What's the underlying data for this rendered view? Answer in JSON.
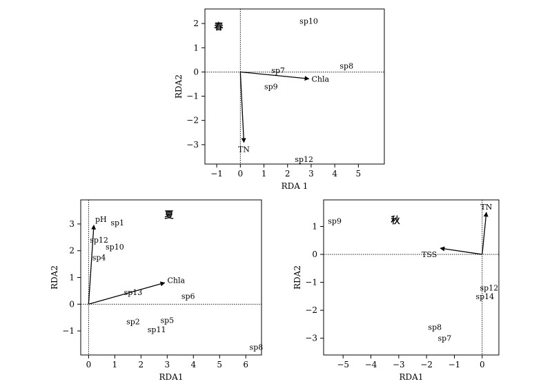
{
  "chart_data": [
    {
      "type": "scatter",
      "title": "春",
      "xlabel": "RDA 1",
      "ylabel": "RDA2",
      "xlim": [
        -1.5,
        6.1
      ],
      "ylim": [
        -3.8,
        2.6
      ],
      "xticks": [
        -1,
        0,
        1,
        2,
        3,
        4,
        5
      ],
      "yticks": [
        -3,
        -2,
        -1,
        0,
        1,
        2
      ],
      "grid": false,
      "reference_lines": {
        "x": 0,
        "y": 0,
        "style": "dotted"
      },
      "species": [
        {
          "label": "sp10",
          "x": 2.9,
          "y": 2.1
        },
        {
          "label": "sp7",
          "x": 1.6,
          "y": 0.07
        },
        {
          "label": "sp8",
          "x": 4.5,
          "y": 0.25
        },
        {
          "label": "sp9",
          "x": 1.3,
          "y": -0.6
        },
        {
          "label": "sp12",
          "x": 2.7,
          "y": -3.6
        }
      ],
      "vectors": [
        {
          "label": "Chla",
          "x": 2.9,
          "y": -0.28
        },
        {
          "label": "TN",
          "x": 0.15,
          "y": -2.9
        }
      ]
    },
    {
      "type": "scatter",
      "title": "夏",
      "xlabel": "RDA1",
      "ylabel": "RDA2",
      "xlim": [
        -0.3,
        6.6
      ],
      "ylim": [
        -1.9,
        3.9
      ],
      "xticks": [
        0,
        1,
        2,
        3,
        4,
        5,
        6
      ],
      "yticks": [
        -1,
        0,
        1,
        2,
        3
      ],
      "grid": false,
      "reference_lines": {
        "x": 0,
        "y": 0,
        "style": "dotted"
      },
      "species": [
        {
          "label": "sp1",
          "x": 1.1,
          "y": 3.05
        },
        {
          "label": "sp12",
          "x": 0.4,
          "y": 2.4
        },
        {
          "label": "sp10",
          "x": 1.0,
          "y": 2.15
        },
        {
          "label": "sp4",
          "x": 0.4,
          "y": 1.75
        },
        {
          "label": "sp13",
          "x": 1.7,
          "y": 0.45
        },
        {
          "label": "sp6",
          "x": 3.8,
          "y": 0.3
        },
        {
          "label": "sp2",
          "x": 1.7,
          "y": -0.65
        },
        {
          "label": "sp5",
          "x": 3.0,
          "y": -0.6
        },
        {
          "label": "sp11",
          "x": 2.6,
          "y": -0.95
        },
        {
          "label": "sp8",
          "x": 6.4,
          "y": -1.6
        }
      ],
      "vectors": [
        {
          "label": "pH",
          "x": 0.2,
          "y": 2.95
        },
        {
          "label": "Chla",
          "x": 2.9,
          "y": 0.8
        }
      ]
    },
    {
      "type": "scatter",
      "title": "秋",
      "xlabel": "RDA1",
      "ylabel": "RDA2",
      "xlim": [
        -5.7,
        0.6
      ],
      "ylim": [
        -3.6,
        1.95
      ],
      "xticks": [
        -5,
        -4,
        -3,
        -2,
        -1,
        0
      ],
      "yticks": [
        -3,
        -2,
        -1,
        0,
        1
      ],
      "grid": false,
      "reference_lines": {
        "x": 0,
        "y": 0,
        "style": "dotted"
      },
      "species": [
        {
          "label": "sp9",
          "x": -5.3,
          "y": 1.2
        },
        {
          "label": "TSS",
          "x": -1.9,
          "y": 0.0
        },
        {
          "label": "sp12",
          "x": 0.25,
          "y": -1.2
        },
        {
          "label": "sp14",
          "x": 0.1,
          "y": -1.5
        },
        {
          "label": "sp8",
          "x": -1.7,
          "y": -2.6
        },
        {
          "label": "sp7",
          "x": -1.35,
          "y": -3.0
        }
      ],
      "vectors": [
        {
          "label": "TN",
          "x": 0.15,
          "y": 1.5
        },
        {
          "label": "",
          "x": -1.5,
          "y": 0.22
        }
      ]
    }
  ]
}
